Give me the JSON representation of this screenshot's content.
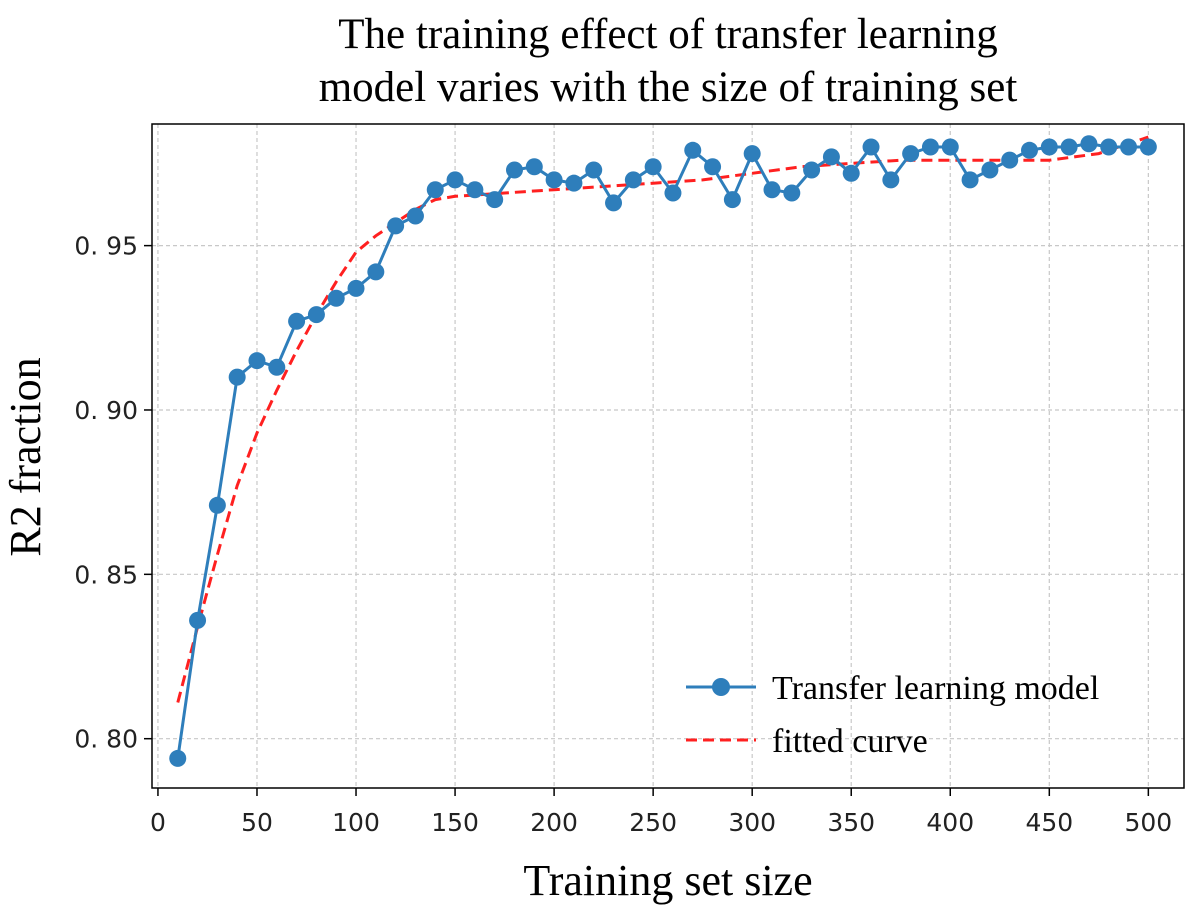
{
  "chart_data": {
    "type": "line",
    "title_lines": [
      "The training effect of transfer learning",
      "model varies with the size of training set"
    ],
    "xlabel": "Training set size",
    "ylabel": "R2 fraction",
    "xlim": [
      -3,
      518
    ],
    "ylim": [
      0.785,
      0.987
    ],
    "xticks": [
      0,
      50,
      100,
      150,
      200,
      250,
      300,
      350,
      400,
      450,
      500
    ],
    "xtick_labels": [
      "0",
      "50",
      "100",
      "150",
      "200",
      "250",
      "300",
      "350",
      "400",
      "450",
      "500"
    ],
    "yticks": [
      0.8,
      0.85,
      0.9,
      0.95
    ],
    "ytick_labels": [
      "0. 80",
      "0. 85",
      "0. 90",
      "0. 95"
    ],
    "grid": true,
    "legend_position": "bottom-right",
    "series": [
      {
        "name": "Transfer learning model",
        "style": "line-with-markers",
        "color": "#2e7ebb",
        "x": [
          10,
          20,
          30,
          40,
          50,
          60,
          70,
          80,
          90,
          100,
          110,
          120,
          130,
          140,
          150,
          160,
          170,
          180,
          190,
          200,
          210,
          220,
          230,
          240,
          250,
          260,
          270,
          280,
          290,
          300,
          310,
          320,
          330,
          340,
          350,
          360,
          370,
          380,
          390,
          400,
          410,
          420,
          430,
          440,
          450,
          460,
          470,
          480,
          490,
          500
        ],
        "y": [
          0.794,
          0.836,
          0.871,
          0.91,
          0.915,
          0.913,
          0.927,
          0.929,
          0.934,
          0.937,
          0.942,
          0.956,
          0.959,
          0.967,
          0.97,
          0.967,
          0.964,
          0.973,
          0.974,
          0.97,
          0.969,
          0.973,
          0.963,
          0.97,
          0.974,
          0.966,
          0.979,
          0.974,
          0.964,
          0.978,
          0.967,
          0.966,
          0.973,
          0.977,
          0.972,
          0.98,
          0.97,
          0.978,
          0.98,
          0.98,
          0.97,
          0.973,
          0.976,
          0.979,
          0.98,
          0.98,
          0.981,
          0.98,
          0.98,
          0.98
        ]
      },
      {
        "name": "fitted curve",
        "style": "dashed",
        "color": "#ff2020",
        "x": [
          10,
          20,
          30,
          40,
          50,
          60,
          70,
          80,
          90,
          100,
          110,
          120,
          130,
          140,
          150,
          175,
          200,
          225,
          250,
          275,
          300,
          325,
          350,
          375,
          400,
          425,
          450,
          475,
          500
        ],
        "y": [
          0.811,
          0.834,
          0.856,
          0.877,
          0.893,
          0.906,
          0.918,
          0.929,
          0.939,
          0.948,
          0.953,
          0.957,
          0.961,
          0.964,
          0.965,
          0.966,
          0.967,
          0.968,
          0.969,
          0.97,
          0.972,
          0.974,
          0.975,
          0.976,
          0.976,
          0.976,
          0.976,
          0.978,
          0.983
        ]
      }
    ]
  }
}
